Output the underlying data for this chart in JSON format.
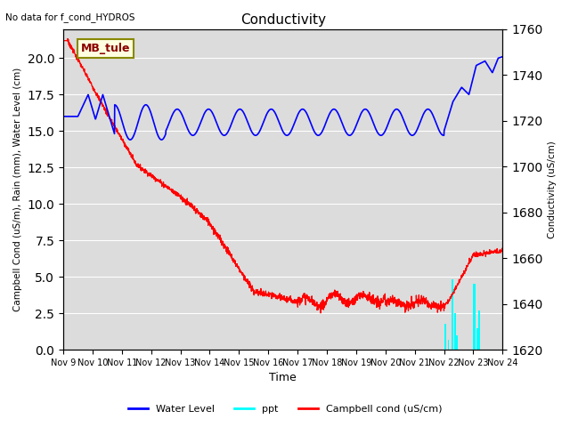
{
  "title": "Conductivity",
  "top_left_text": "No data for f_cond_HYDROS",
  "annotation_box": "MB_tule",
  "ylabel_left": "Campbell Cond (uS/m), Rain (mm), Water Level (cm)",
  "ylabel_right": "Conductivity (uS/cm)",
  "xlabel": "Time",
  "ylim_left": [
    0,
    22
  ],
  "ylim_right": [
    1620,
    1760
  ],
  "xtick_labels": [
    "Nov 9",
    "Nov 10",
    "Nov 11",
    "Nov 12",
    "Nov 13",
    "Nov 14",
    "Nov 15",
    "Nov 16",
    "Nov 17",
    "Nov 18",
    "Nov 19",
    "Nov 20",
    "Nov 21",
    "Nov 22",
    "Nov 23",
    "Nov 24"
  ],
  "bg_color": "#dcdcdc",
  "wl_color": "blue",
  "ppt_color": "cyan",
  "cc_color": "red",
  "legend_entries": [
    "Water Level",
    "ppt",
    "Campbell cond (uS/cm)"
  ]
}
